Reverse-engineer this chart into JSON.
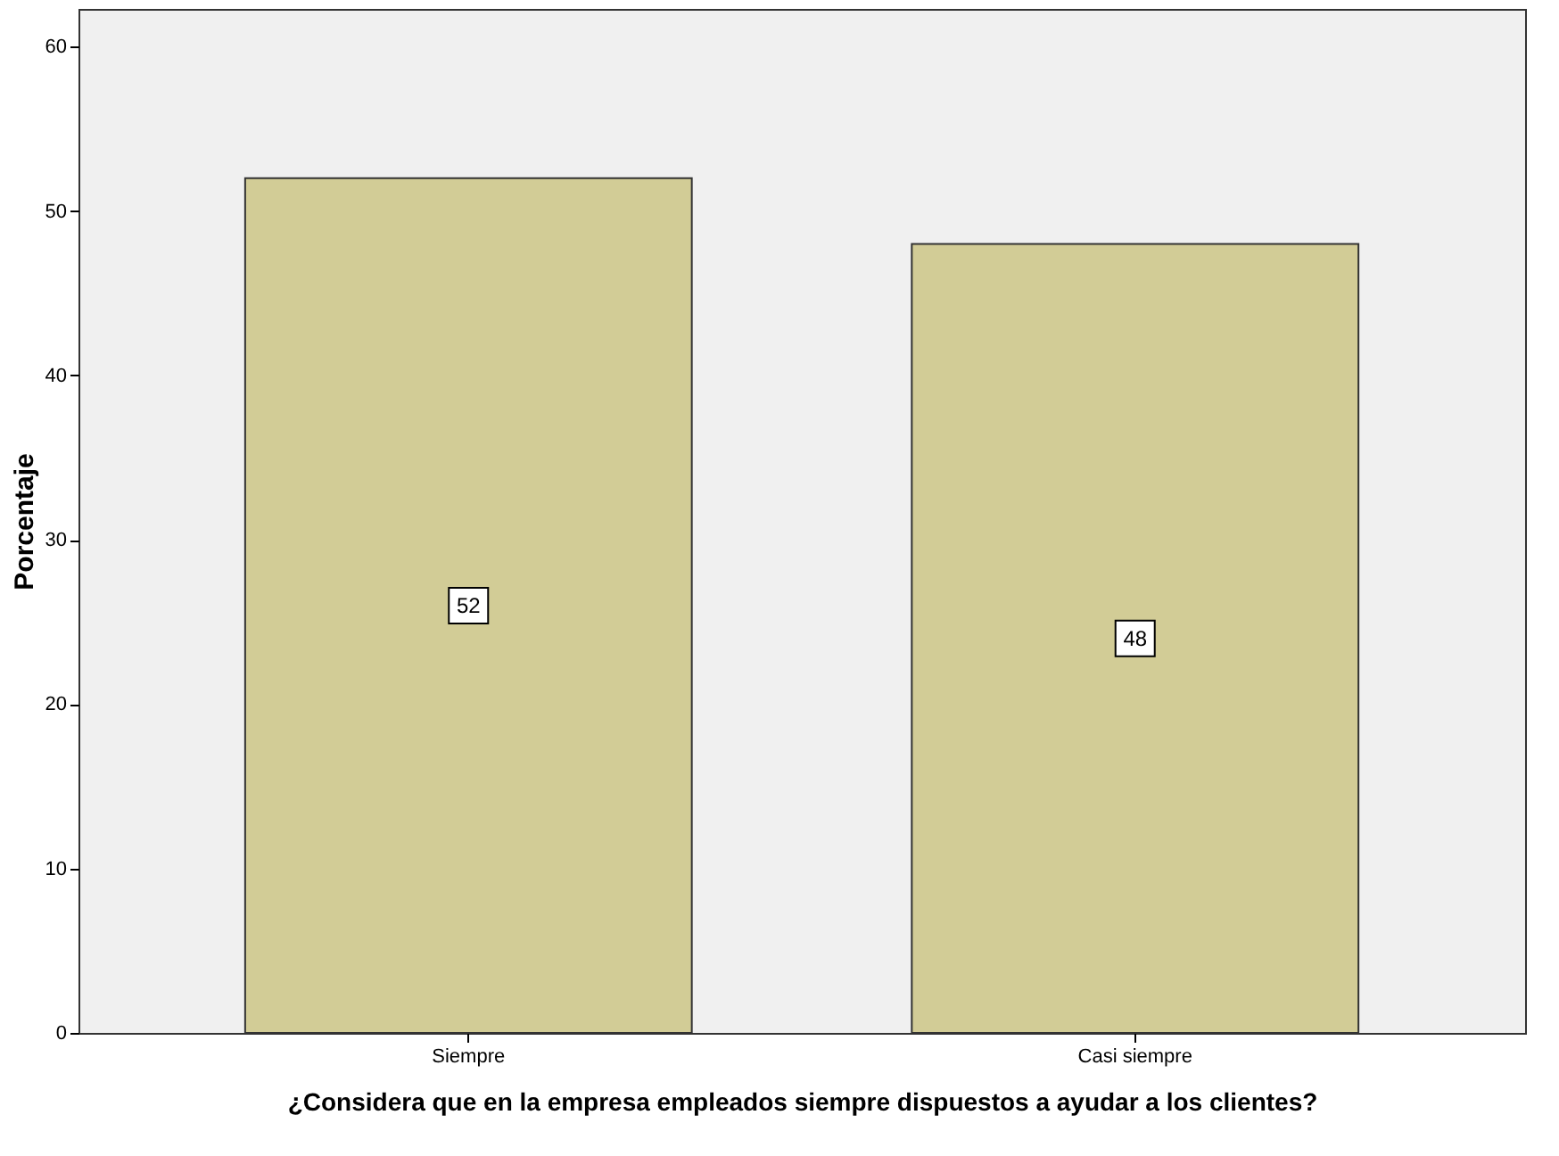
{
  "chart_data": {
    "type": "bar",
    "categories": [
      "Siempre",
      "Casi siempre"
    ],
    "values": [
      52,
      48
    ],
    "color": "#d2cc96",
    "data_labels": true,
    "ylabel": "Porcentaje",
    "xlabel": "¿Considera que en la empresa empleados siempre dispuestos a ayudar a los clientes?",
    "ylim": [
      0,
      62.3
    ],
    "yticks": [
      0,
      10,
      20,
      30,
      40,
      50,
      60
    ],
    "grid": false
  }
}
